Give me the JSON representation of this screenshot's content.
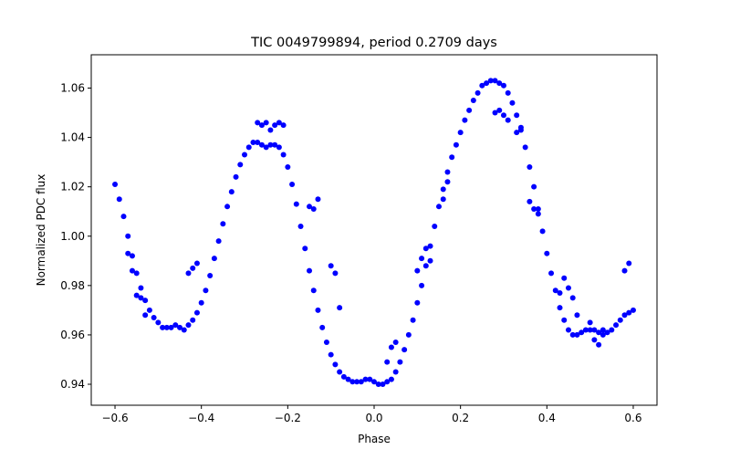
{
  "chart_data": {
    "type": "scatter",
    "title": "TIC 0049799894, period 0.2709 days",
    "xlabel": "Phase",
    "ylabel": "Normalized PDC flux",
    "xlim": [
      -0.655,
      0.655
    ],
    "ylim": [
      0.9315,
      1.0735
    ],
    "xticks": [
      -0.6,
      -0.4,
      -0.2,
      0.0,
      0.2,
      0.4,
      0.6
    ],
    "xtick_labels": [
      "−0.6",
      "−0.4",
      "−0.2",
      "0.0",
      "0.2",
      "0.4",
      "0.6"
    ],
    "yticks": [
      0.94,
      0.96,
      0.98,
      1.0,
      1.02,
      1.04,
      1.06
    ],
    "ytick_labels": [
      "0.94",
      "0.96",
      "0.98",
      "1.00",
      "1.02",
      "1.04",
      "1.06"
    ],
    "grid": false,
    "legend": null,
    "marker_color": "#0000ff",
    "series": [
      {
        "x": [
          -0.6,
          -0.59,
          -0.58,
          -0.57,
          -0.56,
          -0.55,
          -0.54,
          -0.53,
          -0.52,
          -0.51,
          -0.5,
          -0.49,
          -0.48,
          -0.47,
          -0.46,
          -0.45,
          -0.44,
          -0.43,
          -0.42,
          -0.41,
          -0.4,
          -0.39,
          -0.38,
          -0.37,
          -0.36,
          -0.35,
          -0.34,
          -0.33,
          -0.32,
          -0.31,
          -0.3,
          -0.29,
          -0.28,
          -0.27,
          -0.26,
          -0.25,
          -0.24,
          -0.23,
          -0.22,
          -0.21,
          -0.2,
          -0.19,
          -0.18,
          -0.17,
          -0.16,
          -0.15,
          -0.14,
          -0.13,
          -0.12,
          -0.11,
          -0.1,
          -0.09,
          -0.08,
          -0.07,
          -0.06,
          -0.05,
          -0.04,
          -0.03,
          -0.02,
          -0.01,
          0.0,
          0.01,
          0.02,
          0.03,
          0.04,
          0.05,
          0.06,
          0.07,
          0.08,
          0.09,
          0.1,
          0.11,
          0.12,
          0.13,
          0.14,
          0.15,
          0.16,
          0.17,
          0.18,
          0.19,
          0.2,
          0.21,
          0.22,
          0.23,
          0.24,
          0.25,
          0.26,
          0.27,
          0.28,
          0.29,
          0.3,
          0.31,
          0.32,
          0.33,
          0.34,
          0.35,
          0.36,
          0.37,
          0.38,
          0.39,
          0.4,
          0.41,
          0.42,
          0.43,
          0.44,
          0.45,
          0.46,
          0.47,
          0.48,
          0.49,
          0.5,
          0.51,
          0.52,
          0.53,
          0.54,
          0.55,
          0.56,
          0.57,
          0.58,
          0.59,
          0.6
        ],
        "y": [
          1.021,
          1.015,
          1.008,
          1.0,
          0.992,
          0.985,
          0.979,
          0.974,
          0.97,
          0.967,
          0.965,
          0.963,
          0.963,
          0.963,
          0.964,
          0.963,
          0.962,
          0.964,
          0.966,
          0.969,
          0.973,
          0.978,
          0.984,
          0.991,
          0.998,
          1.005,
          1.012,
          1.018,
          1.024,
          1.029,
          1.033,
          1.036,
          1.038,
          1.038,
          1.037,
          1.036,
          1.037,
          1.037,
          1.036,
          1.033,
          1.028,
          1.021,
          1.013,
          1.004,
          0.995,
          0.986,
          0.978,
          0.97,
          0.963,
          0.957,
          0.952,
          0.948,
          0.945,
          0.943,
          0.942,
          0.941,
          0.941,
          0.941,
          0.942,
          0.942,
          0.941,
          0.94,
          0.94,
          0.941,
          0.942,
          0.945,
          0.949,
          0.954,
          0.96,
          0.966,
          0.973,
          0.98,
          0.988,
          0.996,
          1.004,
          1.012,
          1.019,
          1.026,
          1.032,
          1.037,
          1.042,
          1.047,
          1.051,
          1.055,
          1.058,
          1.061,
          1.062,
          1.063,
          1.063,
          1.062,
          1.061,
          1.058,
          1.054,
          1.049,
          1.043,
          1.036,
          1.028,
          1.02,
          1.011,
          1.002,
          0.993,
          0.985,
          0.978,
          0.971,
          0.966,
          0.962,
          0.96,
          0.96,
          0.961,
          0.962,
          0.962,
          0.962,
          0.961,
          0.96,
          0.961,
          0.962,
          0.964,
          0.966,
          0.968,
          0.969,
          0.97
        ]
      },
      {
        "x": [
          -0.57,
          -0.56,
          -0.55,
          -0.54,
          -0.53,
          -0.43,
          -0.42,
          -0.41,
          -0.27,
          -0.26,
          -0.25,
          -0.24,
          -0.23,
          -0.22,
          -0.21,
          -0.15,
          -0.14,
          -0.13,
          -0.1,
          -0.09,
          -0.08,
          0.03,
          0.04,
          0.05,
          0.1,
          0.11,
          0.12,
          0.13,
          0.16,
          0.17,
          0.28,
          0.29,
          0.3,
          0.31,
          0.33,
          0.34,
          0.36,
          0.37,
          0.38,
          0.43,
          0.44,
          0.45,
          0.46,
          0.47,
          0.5,
          0.51,
          0.52,
          0.53,
          0.58,
          0.59
        ],
        "y": [
          0.993,
          0.986,
          0.976,
          0.975,
          0.968,
          0.985,
          0.987,
          0.989,
          1.046,
          1.045,
          1.046,
          1.043,
          1.045,
          1.046,
          1.045,
          1.012,
          1.011,
          1.015,
          0.988,
          0.985,
          0.971,
          0.949,
          0.955,
          0.957,
          0.986,
          0.991,
          0.995,
          0.99,
          1.015,
          1.022,
          1.05,
          1.051,
          1.049,
          1.047,
          1.042,
          1.044,
          1.014,
          1.011,
          1.009,
          0.977,
          0.983,
          0.979,
          0.975,
          0.968,
          0.965,
          0.958,
          0.956,
          0.962,
          0.986,
          0.989
        ]
      }
    ]
  }
}
